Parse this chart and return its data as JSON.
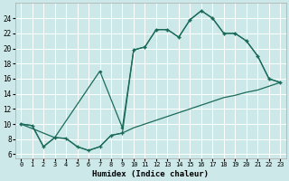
{
  "xlabel": "Humidex (Indice chaleur)",
  "bg_color": "#cce8e8",
  "grid_color": "#ffffff",
  "line_color": "#1a6b5a",
  "xlim": [
    -0.5,
    23.5
  ],
  "ylim": [
    5.5,
    26
  ],
  "xticks": [
    0,
    1,
    2,
    3,
    4,
    5,
    6,
    7,
    8,
    9,
    10,
    11,
    12,
    13,
    14,
    15,
    16,
    17,
    18,
    19,
    20,
    21,
    22,
    23
  ],
  "yticks": [
    6,
    8,
    10,
    12,
    14,
    16,
    18,
    20,
    22,
    24
  ],
  "line1_x": [
    0,
    1,
    2,
    3,
    4,
    5,
    6,
    7,
    8,
    9,
    10,
    11,
    12,
    13,
    14,
    15,
    16,
    17,
    18,
    19,
    20,
    21,
    22,
    23
  ],
  "line1_y": [
    10,
    9.8,
    7.0,
    8.2,
    8.1,
    7.0,
    6.5,
    7.0,
    8.5,
    8.8,
    9.5,
    10.0,
    10.5,
    11.0,
    11.5,
    12.0,
    12.5,
    13.0,
    13.5,
    13.8,
    14.2,
    14.5,
    15.0,
    15.5
  ],
  "line2_x": [
    0,
    1,
    2,
    3,
    4,
    5,
    6,
    7,
    8,
    9,
    10,
    11,
    12,
    13,
    14,
    15,
    16,
    17,
    18,
    19,
    20,
    21,
    22,
    23
  ],
  "line2_y": [
    10,
    9.8,
    7.0,
    8.2,
    8.1,
    7.0,
    6.5,
    7.0,
    8.5,
    8.8,
    19.8,
    20.2,
    22.5,
    22.5,
    21.5,
    23.8,
    25.0,
    24.0,
    22.0,
    22.0,
    21.0,
    19.0,
    16.0,
    15.5
  ],
  "line3_x": [
    0,
    3,
    7,
    9,
    10,
    11,
    12,
    13,
    14,
    15,
    16,
    17,
    18,
    19,
    20,
    21,
    22,
    23
  ],
  "line3_y": [
    10,
    8.2,
    17.0,
    9.5,
    19.8,
    20.2,
    22.5,
    22.5,
    21.5,
    23.8,
    25.0,
    24.0,
    22.0,
    22.0,
    21.0,
    19.0,
    16.0,
    15.5
  ]
}
